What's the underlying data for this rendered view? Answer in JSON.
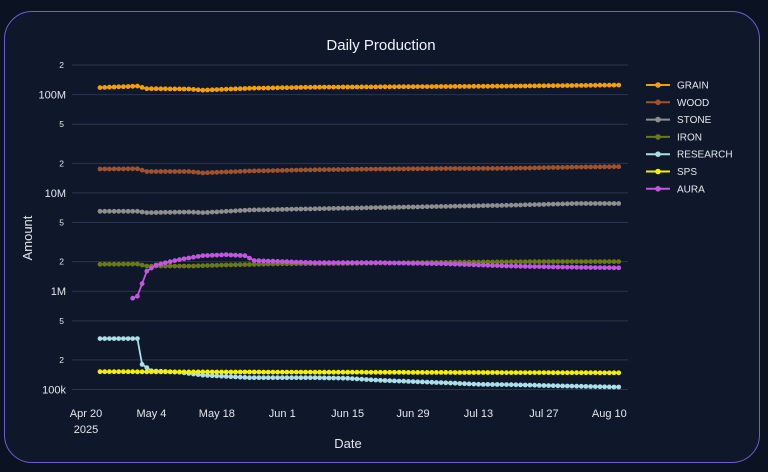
{
  "chart_data": {
    "type": "line",
    "title": "Daily Production",
    "xlabel": "Date",
    "ylabel": "Amount",
    "yscale": "log",
    "ylim": [
      82000,
      225000000
    ],
    "xlim": [
      "2025-04-17",
      "2025-08-14"
    ],
    "x_ticks": [
      {
        "date": "2025-04-20",
        "label": "Apr 20",
        "sub": "2025"
      },
      {
        "date": "2025-05-04",
        "label": "May 4"
      },
      {
        "date": "2025-05-18",
        "label": "May 18"
      },
      {
        "date": "2025-06-01",
        "label": "Jun 1"
      },
      {
        "date": "2025-06-15",
        "label": "Jun 15"
      },
      {
        "date": "2025-06-29",
        "label": "Jun 29"
      },
      {
        "date": "2025-07-13",
        "label": "Jul 13"
      },
      {
        "date": "2025-07-27",
        "label": "Jul 27"
      },
      {
        "date": "2025-08-10",
        "label": "Aug 10"
      }
    ],
    "y_major_ticks": [
      {
        "value": 100000,
        "label": "100k"
      },
      {
        "value": 1000000,
        "label": "1M"
      },
      {
        "value": 10000000,
        "label": "10M"
      },
      {
        "value": 100000000,
        "label": "100M"
      }
    ],
    "y_minor_ticks": [
      {
        "value": 200000,
        "label": "2"
      },
      {
        "value": 500000,
        "label": "5"
      },
      {
        "value": 2000000,
        "label": "2"
      },
      {
        "value": 5000000,
        "label": "5"
      },
      {
        "value": 20000000,
        "label": "2"
      },
      {
        "value": 50000000,
        "label": "5"
      },
      {
        "value": 200000000,
        "label": "2"
      }
    ],
    "grid": true,
    "legend_position": "right",
    "series": [
      {
        "name": "GRAIN",
        "color": "#f59e0b",
        "points": [
          [
            "2025-04-23",
            118000000
          ],
          [
            "2025-05-01",
            122000000
          ],
          [
            "2025-05-03",
            115000000
          ],
          [
            "2025-05-12",
            114000000
          ],
          [
            "2025-05-15",
            111000000
          ],
          [
            "2025-05-25",
            116000000
          ],
          [
            "2025-06-08",
            119000000
          ],
          [
            "2025-06-22",
            120000000
          ],
          [
            "2025-07-06",
            121000000
          ],
          [
            "2025-07-20",
            122000000
          ],
          [
            "2025-08-03",
            124000000
          ],
          [
            "2025-08-12",
            125000000
          ]
        ]
      },
      {
        "name": "WOOD",
        "color": "#a0522d",
        "points": [
          [
            "2025-04-23",
            17500000
          ],
          [
            "2025-05-01",
            17600000
          ],
          [
            "2025-05-03",
            16500000
          ],
          [
            "2025-05-12",
            16500000
          ],
          [
            "2025-05-15",
            16000000
          ],
          [
            "2025-05-25",
            16700000
          ],
          [
            "2025-06-08",
            17200000
          ],
          [
            "2025-06-22",
            17500000
          ],
          [
            "2025-07-06",
            17700000
          ],
          [
            "2025-07-20",
            17800000
          ],
          [
            "2025-08-03",
            18300000
          ],
          [
            "2025-08-12",
            18500000
          ]
        ]
      },
      {
        "name": "STONE",
        "color": "#8e8e8e",
        "points": [
          [
            "2025-04-23",
            6500000
          ],
          [
            "2025-05-01",
            6500000
          ],
          [
            "2025-05-03",
            6300000
          ],
          [
            "2025-05-12",
            6400000
          ],
          [
            "2025-05-15",
            6300000
          ],
          [
            "2025-05-25",
            6700000
          ],
          [
            "2025-06-08",
            6900000
          ],
          [
            "2025-06-22",
            7100000
          ],
          [
            "2025-07-06",
            7300000
          ],
          [
            "2025-07-20",
            7500000
          ],
          [
            "2025-08-03",
            7800000
          ],
          [
            "2025-08-12",
            7800000
          ]
        ]
      },
      {
        "name": "IRON",
        "color": "#6b7a12",
        "points": [
          [
            "2025-04-23",
            1880000
          ],
          [
            "2025-05-01",
            1890000
          ],
          [
            "2025-05-03",
            1800000
          ],
          [
            "2025-05-12",
            1800000
          ],
          [
            "2025-05-20",
            1850000
          ],
          [
            "2025-06-01",
            1900000
          ],
          [
            "2025-06-15",
            1920000
          ],
          [
            "2025-06-29",
            1950000
          ],
          [
            "2025-07-13",
            1980000
          ],
          [
            "2025-07-27",
            2000000
          ],
          [
            "2025-08-12",
            2000000
          ]
        ]
      },
      {
        "name": "RESEARCH",
        "color": "#a8dfe8",
        "points": [
          [
            "2025-04-23",
            330000
          ],
          [
            "2025-05-01",
            330000
          ],
          [
            "2025-05-02",
            180000
          ],
          [
            "2025-05-04",
            155000
          ],
          [
            "2025-05-10",
            150000
          ],
          [
            "2025-05-15",
            140000
          ],
          [
            "2025-05-25",
            132000
          ],
          [
            "2025-06-08",
            132000
          ],
          [
            "2025-06-15",
            130000
          ],
          [
            "2025-06-22",
            124000
          ],
          [
            "2025-07-06",
            117000
          ],
          [
            "2025-07-13",
            113000
          ],
          [
            "2025-07-20",
            112000
          ],
          [
            "2025-08-03",
            108000
          ],
          [
            "2025-08-12",
            106000
          ]
        ]
      },
      {
        "name": "SPS",
        "color": "#f5f000",
        "points": [
          [
            "2025-04-23",
            152000
          ],
          [
            "2025-05-15",
            151000
          ],
          [
            "2025-06-15",
            150000
          ],
          [
            "2025-07-13",
            149000
          ],
          [
            "2025-08-12",
            148000
          ]
        ]
      },
      {
        "name": "AURA",
        "color": "#c156e0",
        "points": [
          [
            "2025-04-30",
            850000
          ],
          [
            "2025-05-01",
            890000
          ],
          [
            "2025-05-03",
            1600000
          ],
          [
            "2025-05-05",
            1850000
          ],
          [
            "2025-05-10",
            2100000
          ],
          [
            "2025-05-15",
            2300000
          ],
          [
            "2025-05-20",
            2350000
          ],
          [
            "2025-05-24",
            2300000
          ],
          [
            "2025-05-26",
            2050000
          ],
          [
            "2025-06-08",
            1950000
          ],
          [
            "2025-06-22",
            1950000
          ],
          [
            "2025-07-06",
            1900000
          ],
          [
            "2025-07-20",
            1800000
          ],
          [
            "2025-08-03",
            1750000
          ],
          [
            "2025-08-12",
            1730000
          ]
        ]
      }
    ]
  }
}
